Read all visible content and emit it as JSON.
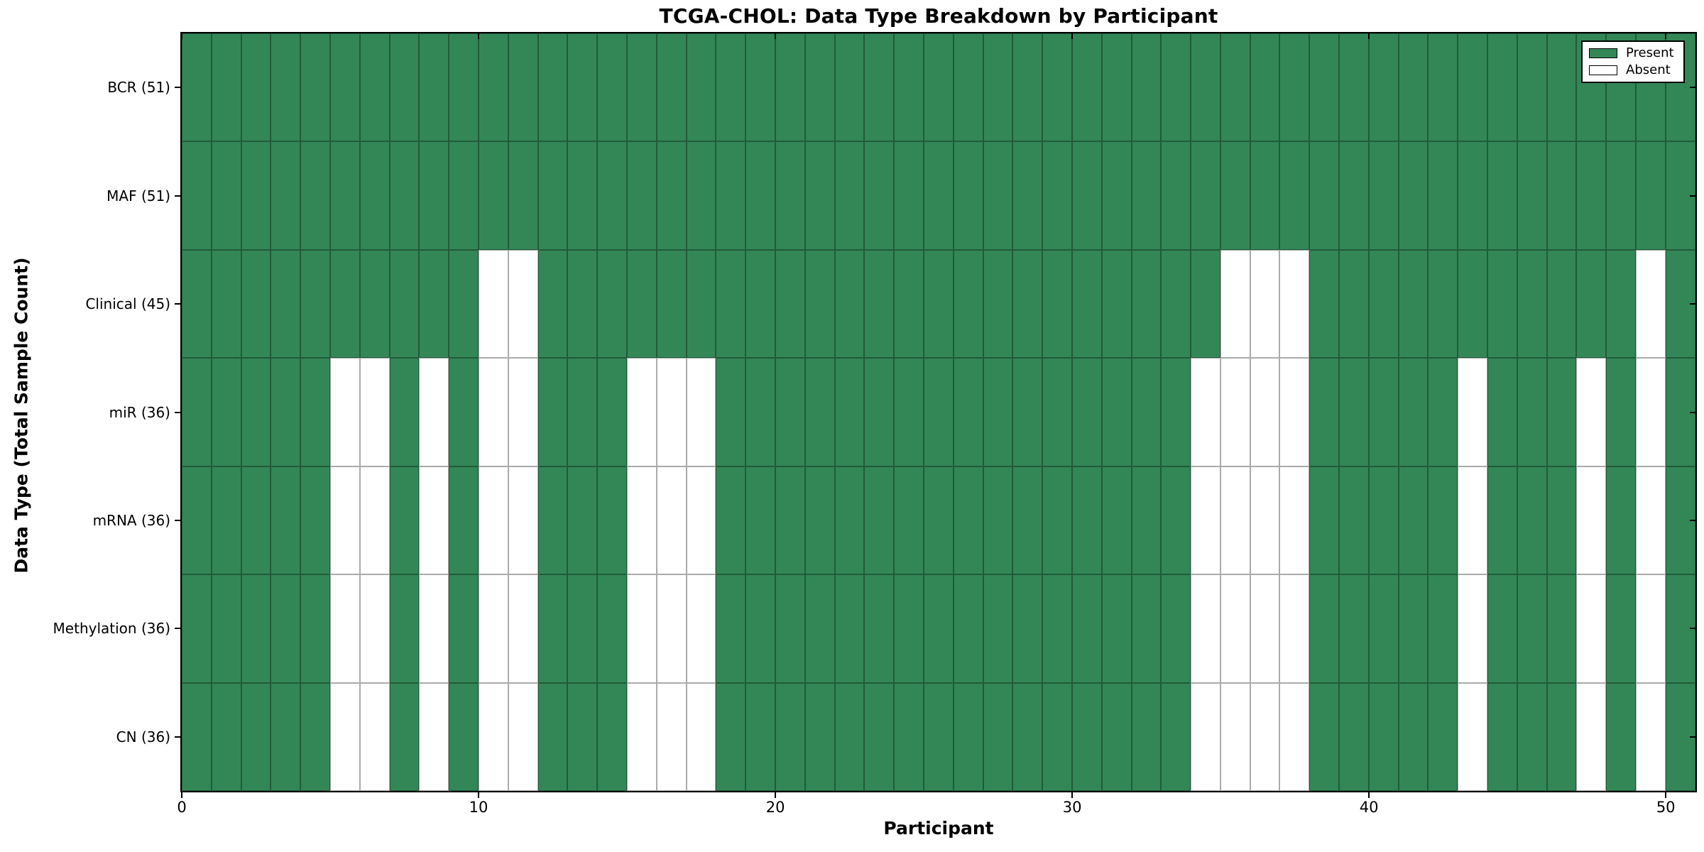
{
  "chart_data": {
    "type": "heatmap",
    "title": "TCGA-CHOL: Data Type Breakdown by Participant",
    "xlabel": "Participant",
    "ylabel": "Data Type (Total Sample Count)",
    "x_ticks": [
      0,
      10,
      20,
      30,
      40,
      50
    ],
    "x_range": [
      0,
      51
    ],
    "n_participants": 51,
    "grid": true,
    "rows": [
      {
        "label": "BCR (51)",
        "data_type": "BCR",
        "total_present": 51,
        "absent_participants": []
      },
      {
        "label": "MAF (51)",
        "data_type": "MAF",
        "total_present": 51,
        "absent_participants": []
      },
      {
        "label": "Clinical (45)",
        "data_type": "Clinical",
        "total_present": 45,
        "absent_participants": [
          10,
          11,
          35,
          36,
          37,
          49
        ]
      },
      {
        "label": "miR (36)",
        "data_type": "miR",
        "total_present": 36,
        "absent_participants": [
          5,
          6,
          8,
          10,
          11,
          15,
          16,
          17,
          34,
          35,
          36,
          37,
          43,
          47,
          49
        ]
      },
      {
        "label": "mRNA (36)",
        "data_type": "mRNA",
        "total_present": 36,
        "absent_participants": [
          5,
          6,
          8,
          10,
          11,
          15,
          16,
          17,
          34,
          35,
          36,
          37,
          43,
          47,
          49
        ]
      },
      {
        "label": "Methylation (36)",
        "data_type": "Methylation",
        "total_present": 36,
        "absent_participants": [
          5,
          6,
          8,
          10,
          11,
          15,
          16,
          17,
          34,
          35,
          36,
          37,
          43,
          47,
          49
        ]
      },
      {
        "label": "CN (36)",
        "data_type": "CN",
        "total_present": 36,
        "absent_participants": [
          5,
          6,
          8,
          10,
          11,
          15,
          16,
          17,
          34,
          35,
          36,
          37,
          43,
          47,
          49
        ]
      }
    ],
    "legend": {
      "position": "upper right",
      "entries": [
        {
          "label": "Present",
          "color": "#338757"
        },
        {
          "label": "Absent",
          "color": "#ffffff"
        }
      ]
    },
    "colors": {
      "present": "#338757",
      "absent": "#ffffff",
      "edge": "#000000",
      "background": "#ffffff"
    }
  }
}
